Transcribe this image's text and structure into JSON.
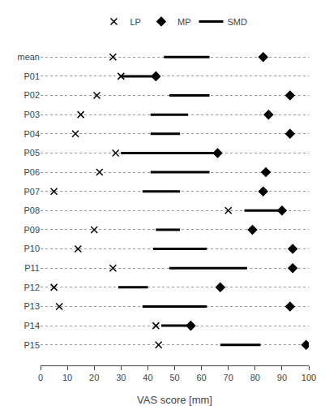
{
  "chart_data": {
    "type": "dumbbell",
    "categories": [
      "mean",
      "P01",
      "P02",
      "P03",
      "P04",
      "P05",
      "P06",
      "P07",
      "P08",
      "P09",
      "P10",
      "P11",
      "P12",
      "P13",
      "P14",
      "P15"
    ],
    "series": [
      {
        "name": "LP",
        "type": "scatter",
        "marker": "x",
        "color": "#000000",
        "values": [
          27,
          30,
          21,
          15,
          13,
          28,
          22,
          5,
          70,
          20,
          14,
          27,
          5,
          7,
          43,
          44
        ]
      },
      {
        "name": "MP",
        "type": "scatter",
        "marker": "diamond",
        "color": "#000000",
        "values": [
          83,
          43,
          93,
          85,
          93,
          66,
          84,
          83,
          90,
          79,
          94,
          94,
          67,
          93,
          56,
          99
        ]
      },
      {
        "name": "SMD",
        "type": "range",
        "color": "#000000",
        "start": [
          46,
          30,
          48,
          41,
          41,
          30,
          41,
          38,
          76,
          43,
          42,
          48,
          29,
          38,
          45,
          67
        ],
        "end": [
          63,
          43,
          63,
          55,
          52,
          66,
          63,
          52,
          90,
          52,
          62,
          77,
          40,
          62,
          56,
          82
        ]
      }
    ],
    "xlabel": "VAS score [mm]",
    "xlim": [
      0,
      100
    ],
    "xticks": [
      0,
      10,
      20,
      30,
      40,
      50,
      60,
      70,
      80,
      90,
      100
    ],
    "grid": true,
    "legend": "top"
  }
}
